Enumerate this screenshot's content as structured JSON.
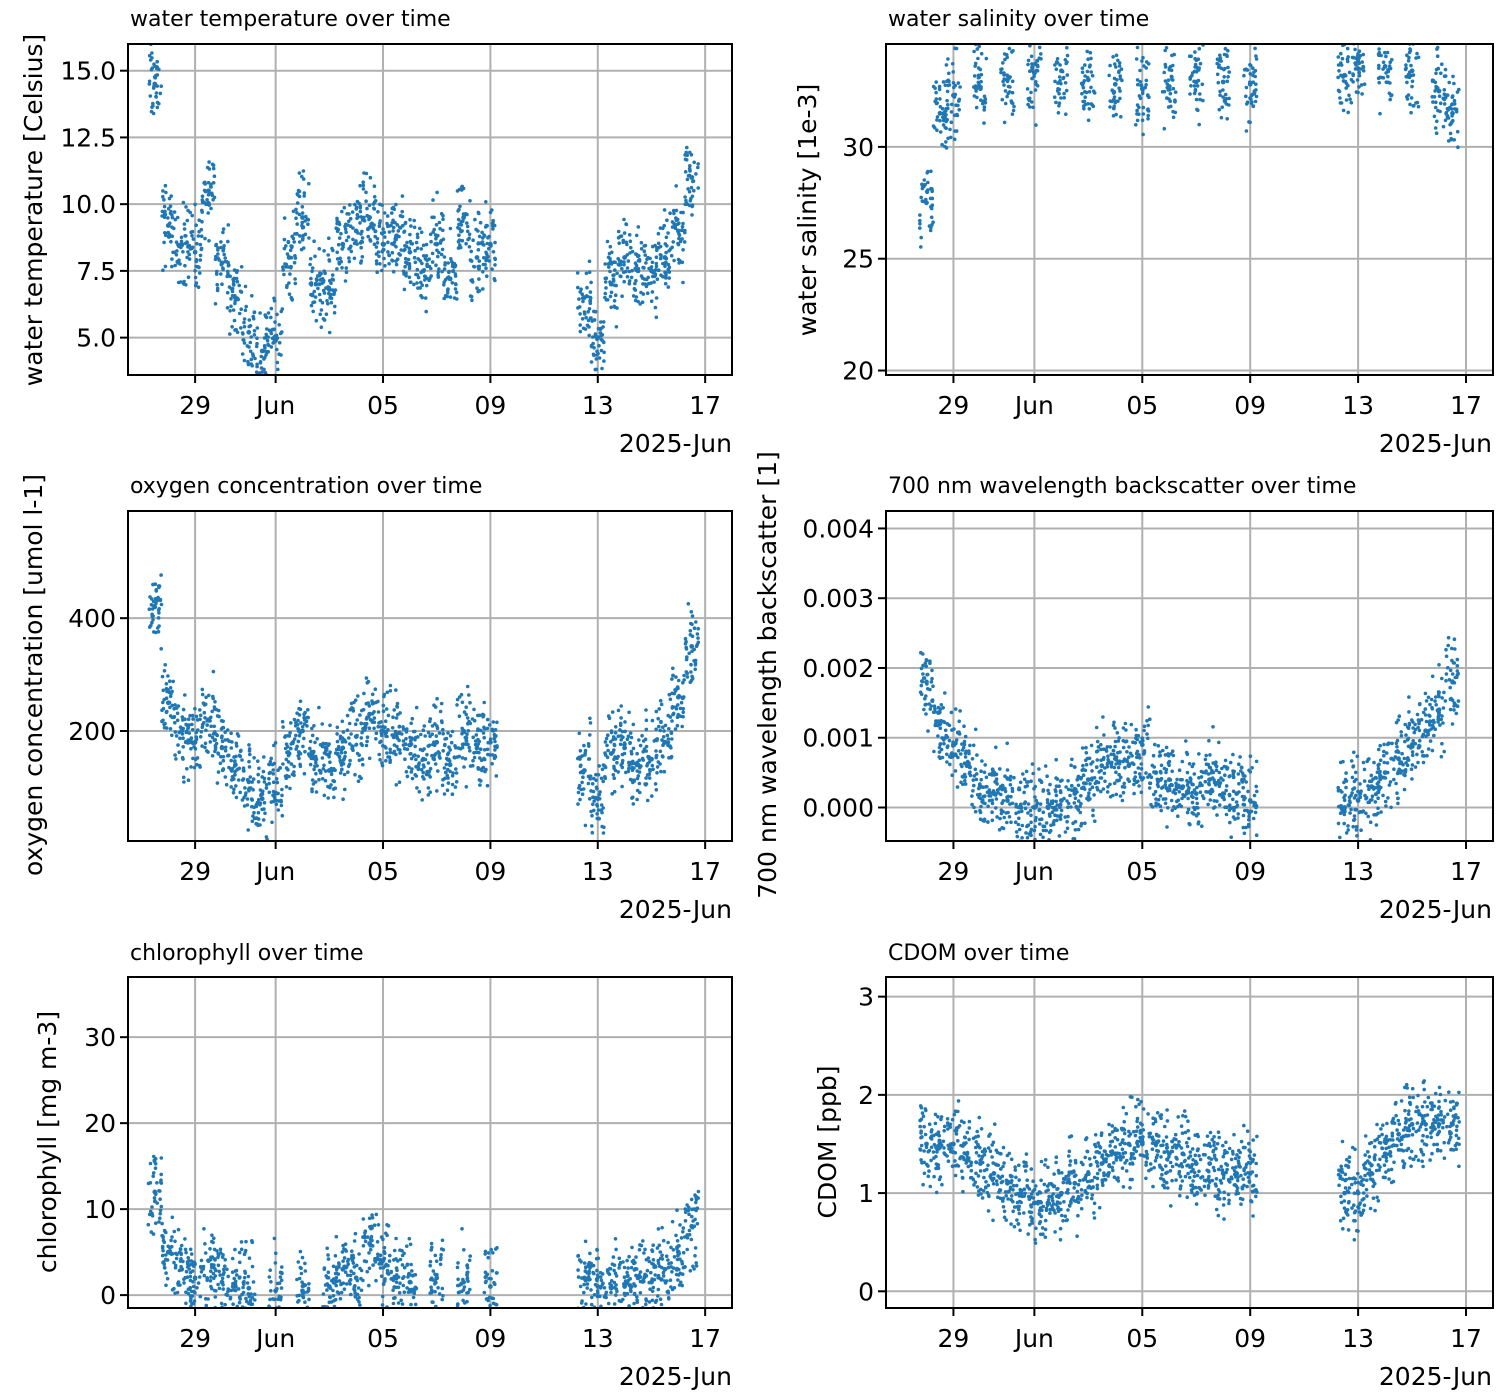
{
  "chart_data": [
    {
      "type": "scatter",
      "title": "water temperature over time",
      "ylabel": "water temperature [Celsius]",
      "xlabel": "",
      "x_tick_labels": [
        "29",
        "Jun",
        "05",
        "09",
        "13",
        "17"
      ],
      "x_offset_label": "2025-Jun",
      "xlim": [
        "2025-05-26T12:00",
        "2025-06-18T00:00"
      ],
      "ylim": [
        3.6,
        16.0
      ],
      "yticks": [
        5.0,
        7.5,
        10.0,
        12.5,
        15.0
      ],
      "ytick_labels": [
        "5.0",
        "7.5",
        "10.0",
        "12.5",
        "15.0"
      ],
      "grid": true,
      "color": "#1f77b4",
      "series": [
        {
          "x": [
            "2025-05-27T12:00",
            "2025-05-28T00:00",
            "2025-05-28T12:00",
            "2025-05-29T00:00",
            "2025-05-29T12:00",
            "2025-05-30T00:00",
            "2025-05-30T12:00",
            "2025-05-31T00:00",
            "2025-05-31T12:00",
            "2025-06-01T00:00",
            "2025-06-01T12:00",
            "2025-06-02T00:00",
            "2025-06-02T12:00",
            "2025-06-03T00:00",
            "2025-06-03T12:00",
            "2025-06-04T00:00",
            "2025-06-04T12:00",
            "2025-06-05T00:00",
            "2025-06-05T12:00",
            "2025-06-06T00:00",
            "2025-06-06T12:00",
            "2025-06-07T00:00",
            "2025-06-07T12:00",
            "2025-06-08T00:00",
            "2025-06-08T12:00",
            "2025-06-09T00:00",
            "2025-06-12T12:00",
            "2025-06-13T00:00",
            "2025-06-13T12:00",
            "2025-06-14T00:00",
            "2025-06-14T12:00",
            "2025-06-15T00:00",
            "2025-06-15T12:00",
            "2025-06-16T00:00",
            "2025-06-16T12:00"
          ],
          "y": [
            14.5,
            9.2,
            8.5,
            8.2,
            10.5,
            7.8,
            6.5,
            5.2,
            4.5,
            5.0,
            8.0,
            9.5,
            7.0,
            6.8,
            8.5,
            9.0,
            9.5,
            8.5,
            8.8,
            8.2,
            7.5,
            8.5,
            7.2,
            9.5,
            8.0,
            8.5,
            6.5,
            5.0,
            7.0,
            8.0,
            7.5,
            7.5,
            8.0,
            9.0,
            11.0
          ]
        }
      ]
    },
    {
      "type": "scatter",
      "title": "water salinity over time",
      "ylabel": "water salinity [1e-3]",
      "xlabel": "",
      "x_tick_labels": [
        "29",
        "Jun",
        "05",
        "09",
        "13",
        "17"
      ],
      "x_offset_label": "2025-Jun",
      "xlim": [
        "2025-05-26T12:00",
        "2025-06-18T00:00"
      ],
      "ylim": [
        19.8,
        34.6
      ],
      "yticks": [
        20,
        25,
        30
      ],
      "ytick_labels": [
        "20",
        "25",
        "30"
      ],
      "grid": true,
      "color": "#1f77b4",
      "series": [
        {
          "x": [
            "2025-05-28T00:00",
            "2025-05-28T12:00",
            "2025-05-29T00:00",
            "2025-05-30T00:00",
            "2025-05-31T00:00",
            "2025-06-01T00:00",
            "2025-06-02T00:00",
            "2025-06-03T00:00",
            "2025-06-04T00:00",
            "2025-06-05T00:00",
            "2025-06-06T00:00",
            "2025-06-07T00:00",
            "2025-06-08T00:00",
            "2025-06-09T00:00",
            "2025-06-12T12:00",
            "2025-06-13T00:00",
            "2025-06-14T00:00",
            "2025-06-15T00:00",
            "2025-06-16T00:00",
            "2025-06-16T12:00"
          ],
          "y": [
            27.5,
            31.5,
            32.3,
            32.6,
            33.0,
            33.3,
            33.4,
            33.0,
            32.8,
            32.6,
            32.7,
            32.9,
            32.9,
            32.8,
            33.2,
            33.5,
            33.6,
            33.4,
            32.5,
            31.5
          ]
        }
      ]
    },
    {
      "type": "scatter",
      "title": "oxygen concentration over time",
      "ylabel": "oxygen concentration [umol l-1]",
      "xlabel": "",
      "x_tick_labels": [
        "29",
        "Jun",
        "05",
        "09",
        "13",
        "17"
      ],
      "x_offset_label": "2025-Jun",
      "xlim": [
        "2025-05-26T12:00",
        "2025-06-18T00:00"
      ],
      "ylim": [
        5,
        590
      ],
      "yticks": [
        200,
        400
      ],
      "ytick_labels": [
        "200",
        "400"
      ],
      "grid": true,
      "color": "#1f77b4",
      "series": [
        {
          "x": [
            "2025-05-27T12:00",
            "2025-05-28T00:00",
            "2025-05-28T12:00",
            "2025-05-29T00:00",
            "2025-05-29T12:00",
            "2025-05-30T00:00",
            "2025-05-30T12:00",
            "2025-05-31T00:00",
            "2025-05-31T12:00",
            "2025-06-01T00:00",
            "2025-06-01T12:00",
            "2025-06-02T00:00",
            "2025-06-02T12:00",
            "2025-06-03T00:00",
            "2025-06-03T12:00",
            "2025-06-04T00:00",
            "2025-06-04T12:00",
            "2025-06-05T00:00",
            "2025-06-05T12:00",
            "2025-06-06T00:00",
            "2025-06-06T12:00",
            "2025-06-07T00:00",
            "2025-06-07T12:00",
            "2025-06-08T00:00",
            "2025-06-08T12:00",
            "2025-06-09T00:00",
            "2025-06-12T12:00",
            "2025-06-13T00:00",
            "2025-06-13T12:00",
            "2025-06-14T00:00",
            "2025-06-14T12:00",
            "2025-06-15T00:00",
            "2025-06-15T12:00",
            "2025-06-16T00:00",
            "2025-06-16T12:00"
          ],
          "y": [
            420,
            250,
            200,
            180,
            220,
            170,
            140,
            110,
            80,
            90,
            160,
            200,
            150,
            130,
            170,
            190,
            230,
            200,
            190,
            175,
            150,
            180,
            140,
            200,
            170,
            180,
            130,
            80,
            160,
            170,
            140,
            150,
            180,
            260,
            350
          ]
        }
      ]
    },
    {
      "type": "scatter",
      "title": "700 nm wavelength backscatter over time",
      "ylabel": "700 nm wavelength backscatter [1]",
      "xlabel": "",
      "x_tick_labels": [
        "29",
        "Jun",
        "05",
        "09",
        "13",
        "17"
      ],
      "x_offset_label": "2025-Jun",
      "xlim": [
        "2025-05-26T12:00",
        "2025-06-18T00:00"
      ],
      "ylim": [
        -0.00048,
        0.00425
      ],
      "yticks": [
        0.0,
        0.001,
        0.002,
        0.003,
        0.004
      ],
      "ytick_labels": [
        "0.000",
        "0.001",
        "0.002",
        "0.003",
        "0.004"
      ],
      "grid": true,
      "color": "#1f77b4",
      "series": [
        {
          "x": [
            "2025-05-28T00:00",
            "2025-05-28T12:00",
            "2025-05-29T00:00",
            "2025-05-29T12:00",
            "2025-05-30T00:00",
            "2025-05-30T12:00",
            "2025-05-31T00:00",
            "2025-05-31T12:00",
            "2025-06-01T00:00",
            "2025-06-01T12:00",
            "2025-06-02T00:00",
            "2025-06-02T12:00",
            "2025-06-03T00:00",
            "2025-06-03T12:00",
            "2025-06-04T00:00",
            "2025-06-04T12:00",
            "2025-06-05T00:00",
            "2025-06-05T12:00",
            "2025-06-06T00:00",
            "2025-06-06T12:00",
            "2025-06-07T00:00",
            "2025-06-07T12:00",
            "2025-06-08T00:00",
            "2025-06-08T12:00",
            "2025-06-09T00:00",
            "2025-06-12T12:00",
            "2025-06-13T00:00",
            "2025-06-13T12:00",
            "2025-06-14T00:00",
            "2025-06-14T12:00",
            "2025-06-15T00:00",
            "2025-06-15T12:00",
            "2025-06-16T00:00",
            "2025-06-16T12:00"
          ],
          "y": [
            0.0018,
            0.0012,
            0.0009,
            0.0006,
            0.0003,
            0.0002,
            0.0001,
            0.0,
            0.0,
            0.0,
            0.0001,
            0.0002,
            0.0004,
            0.0006,
            0.0007,
            0.0006,
            0.0009,
            0.0005,
            0.0004,
            0.0003,
            0.0002,
            0.0004,
            0.0002,
            0.0002,
            0.0001,
            0.0,
            0.0001,
            0.0003,
            0.0005,
            0.0007,
            0.0009,
            0.0011,
            0.0014,
            0.0018
          ]
        }
      ]
    },
    {
      "type": "scatter",
      "title": "chlorophyll over time",
      "ylabel": "chlorophyll [mg m-3]",
      "xlabel": "",
      "x_tick_labels": [
        "29",
        "Jun",
        "05",
        "09",
        "13",
        "17"
      ],
      "x_offset_label": "2025-Jun",
      "xlim": [
        "2025-05-26T12:00",
        "2025-06-18T00:00"
      ],
      "ylim": [
        -1.5,
        37
      ],
      "yticks": [
        0,
        10,
        20,
        30
      ],
      "ytick_labels": [
        "0",
        "10",
        "20",
        "30"
      ],
      "grid": true,
      "color": "#1f77b4",
      "series": [
        {
          "x": [
            "2025-05-27T12:00",
            "2025-05-28T00:00",
            "2025-05-28T12:00",
            "2025-05-29T00:00",
            "2025-05-29T12:00",
            "2025-05-30T00:00",
            "2025-05-30T12:00",
            "2025-05-31T00:00",
            "2025-06-01T00:00",
            "2025-06-02T00:00",
            "2025-06-03T00:00",
            "2025-06-03T12:00",
            "2025-06-04T00:00",
            "2025-06-04T12:00",
            "2025-06-05T00:00",
            "2025-06-05T12:00",
            "2025-06-06T00:00",
            "2025-06-07T00:00",
            "2025-06-08T00:00",
            "2025-06-09T00:00",
            "2025-06-12T12:00",
            "2025-06-13T00:00",
            "2025-06-13T12:00",
            "2025-06-14T00:00",
            "2025-06-14T12:00",
            "2025-06-15T00:00",
            "2025-06-15T12:00",
            "2025-06-16T00:00",
            "2025-06-16T12:00"
          ],
          "y": [
            12.0,
            5.0,
            3.0,
            2.0,
            4.0,
            1.5,
            1.0,
            0.8,
            0.5,
            0.5,
            1.0,
            3.0,
            2.0,
            6.0,
            4.0,
            2.0,
            1.5,
            2.0,
            1.5,
            1.0,
            2.0,
            1.0,
            0.8,
            1.0,
            2.0,
            1.5,
            3.0,
            5.0,
            8.0
          ]
        }
      ]
    },
    {
      "type": "scatter",
      "title": "CDOM over time",
      "ylabel": "CDOM [ppb]",
      "xlabel": "",
      "x_tick_labels": [
        "29",
        "Jun",
        "05",
        "09",
        "13",
        "17"
      ],
      "x_offset_label": "2025-Jun",
      "xlim": [
        "2025-05-26T12:00",
        "2025-06-18T00:00"
      ],
      "ylim": [
        -0.17,
        3.2
      ],
      "yticks": [
        0,
        1,
        2,
        3
      ],
      "ytick_labels": [
        "0",
        "1",
        "2",
        "3"
      ],
      "grid": true,
      "color": "#1f77b4",
      "series": [
        {
          "x": [
            "2025-05-28T00:00",
            "2025-05-28T12:00",
            "2025-05-29T00:00",
            "2025-05-29T12:00",
            "2025-05-30T00:00",
            "2025-05-30T12:00",
            "2025-05-31T00:00",
            "2025-05-31T12:00",
            "2025-06-01T00:00",
            "2025-06-01T12:00",
            "2025-06-02T00:00",
            "2025-06-02T12:00",
            "2025-06-03T00:00",
            "2025-06-03T12:00",
            "2025-06-04T00:00",
            "2025-06-04T12:00",
            "2025-06-05T00:00",
            "2025-06-05T12:00",
            "2025-06-06T00:00",
            "2025-06-06T12:00",
            "2025-06-07T00:00",
            "2025-06-07T12:00",
            "2025-06-08T00:00",
            "2025-06-08T12:00",
            "2025-06-09T00:00",
            "2025-06-12T12:00",
            "2025-06-13T00:00",
            "2025-06-13T12:00",
            "2025-06-14T00:00",
            "2025-06-14T12:00",
            "2025-06-15T00:00",
            "2025-06-15T12:00",
            "2025-06-16T00:00",
            "2025-06-16T12:00"
          ],
          "y": [
            1.5,
            1.5,
            1.5,
            1.4,
            1.3,
            1.2,
            1.1,
            1.0,
            0.9,
            0.9,
            1.0,
            1.1,
            1.2,
            1.3,
            1.4,
            1.5,
            1.5,
            1.5,
            1.4,
            1.4,
            1.3,
            1.3,
            1.2,
            1.2,
            1.2,
            1.0,
            1.0,
            1.2,
            1.4,
            1.6,
            1.7,
            1.7,
            1.7,
            1.7
          ]
        }
      ]
    }
  ]
}
